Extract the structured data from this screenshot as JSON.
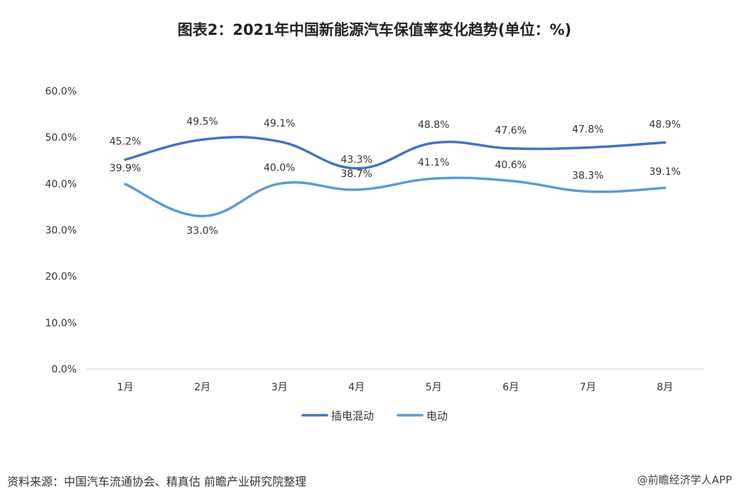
{
  "title": "图表2：2021年中国新能源汽车保值率变化趋势(单位：%)",
  "source": "资料来源：中国汽车流通协会、精真估 前瞻产业研究院整理",
  "brand": "@前瞻经济学人APP",
  "chart_data": {
    "type": "line",
    "title": "图表2：2021年中国新能源汽车保值率变化趋势(单位：%)",
    "categories": [
      "1月",
      "2月",
      "3月",
      "4月",
      "5月",
      "6月",
      "7月",
      "8月"
    ],
    "ylim": [
      0,
      60
    ],
    "yticks": [
      "0.0%",
      "10.0%",
      "20.0%",
      "30.0%",
      "40.0%",
      "50.0%",
      "60.0%"
    ],
    "grid": false,
    "legend_position": "bottom",
    "series": [
      {
        "name": "插电混动",
        "color": "#4472C4",
        "values": [
          45.2,
          49.5,
          49.1,
          43.3,
          48.8,
          47.6,
          47.8,
          48.9
        ],
        "labels": [
          "45.2%",
          "49.5%",
          "49.1%",
          "43.3%",
          "48.8%",
          "47.6%",
          "47.8%",
          "48.9%"
        ]
      },
      {
        "name": "电动",
        "color": "#5B9BD5",
        "values": [
          39.9,
          33.0,
          40.0,
          38.7,
          41.1,
          40.6,
          38.3,
          39.1
        ],
        "labels": [
          "39.9%",
          "33.0%",
          "40.0%",
          "38.7%",
          "41.1%",
          "40.6%",
          "38.3%",
          "39.1%"
        ]
      }
    ]
  }
}
